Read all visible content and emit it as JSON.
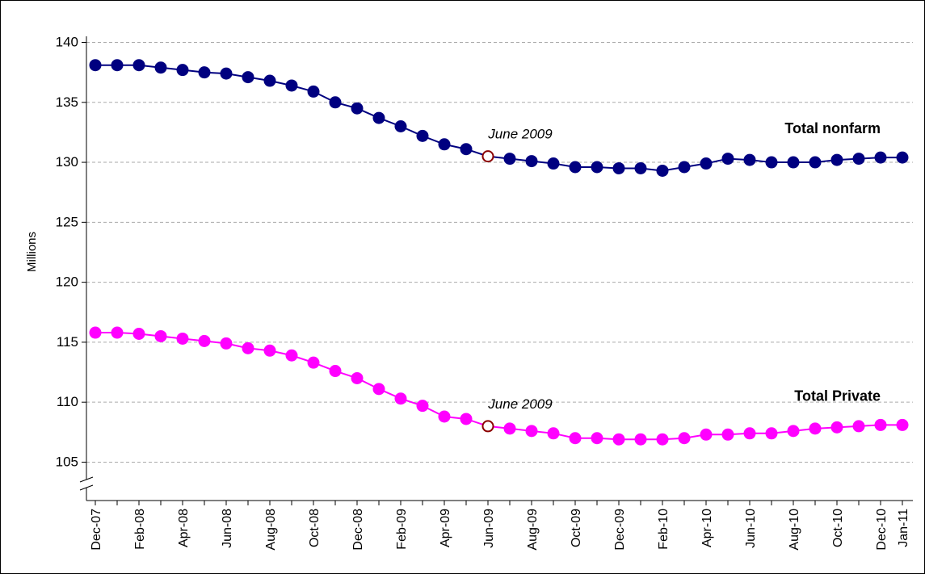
{
  "chart_data": {
    "type": "line",
    "y_label": "Millions",
    "categories": [
      "Dec-07",
      null,
      "Feb-08",
      null,
      "Apr-08",
      null,
      "Jun-08",
      null,
      "Aug-08",
      null,
      "Oct-08",
      null,
      "Dec-08",
      null,
      "Feb-09",
      null,
      "Apr-09",
      null,
      "Jun-09",
      null,
      "Aug-09",
      null,
      "Oct-09",
      null,
      "Dec-09",
      null,
      "Feb-10",
      null,
      "Apr-10",
      null,
      "Jun-10",
      null,
      "Aug-10",
      null,
      "Oct-10",
      null,
      "Dec-10",
      "Jan-11"
    ],
    "series": [
      {
        "name": "Total nonfarm",
        "color": "#000080",
        "annotation": "June 2009",
        "highlight": "Jun-09",
        "values": [
          138.1,
          138.1,
          138.1,
          137.9,
          137.7,
          137.5,
          137.4,
          137.1,
          136.8,
          136.4,
          135.9,
          135.0,
          134.5,
          133.7,
          133.0,
          132.2,
          131.5,
          131.1,
          130.5,
          130.3,
          130.1,
          129.9,
          129.6,
          129.6,
          129.5,
          129.5,
          129.3,
          129.6,
          129.9,
          130.3,
          130.2,
          130.0,
          130.0,
          130.0,
          130.2,
          130.3,
          130.4,
          130.4
        ]
      },
      {
        "name": "Total Private",
        "color": "#ff00ff",
        "annotation": "June 2009",
        "highlight": "Jun-09",
        "values": [
          115.8,
          115.8,
          115.7,
          115.5,
          115.3,
          115.1,
          114.9,
          114.5,
          114.3,
          113.9,
          113.3,
          112.6,
          112.0,
          111.1,
          110.3,
          109.7,
          108.8,
          108.6,
          108.0,
          107.8,
          107.6,
          107.4,
          107.0,
          107.0,
          106.9,
          106.9,
          106.9,
          107.0,
          107.3,
          107.3,
          107.4,
          107.4,
          107.6,
          107.8,
          107.9,
          108.0,
          108.1,
          108.1
        ]
      }
    ],
    "highlight_color": "#8b0000",
    "ylim": [
      101.8,
      140
    ],
    "yticks": [
      105,
      110,
      115,
      120,
      125,
      130,
      135,
      140
    ],
    "grid": true
  }
}
